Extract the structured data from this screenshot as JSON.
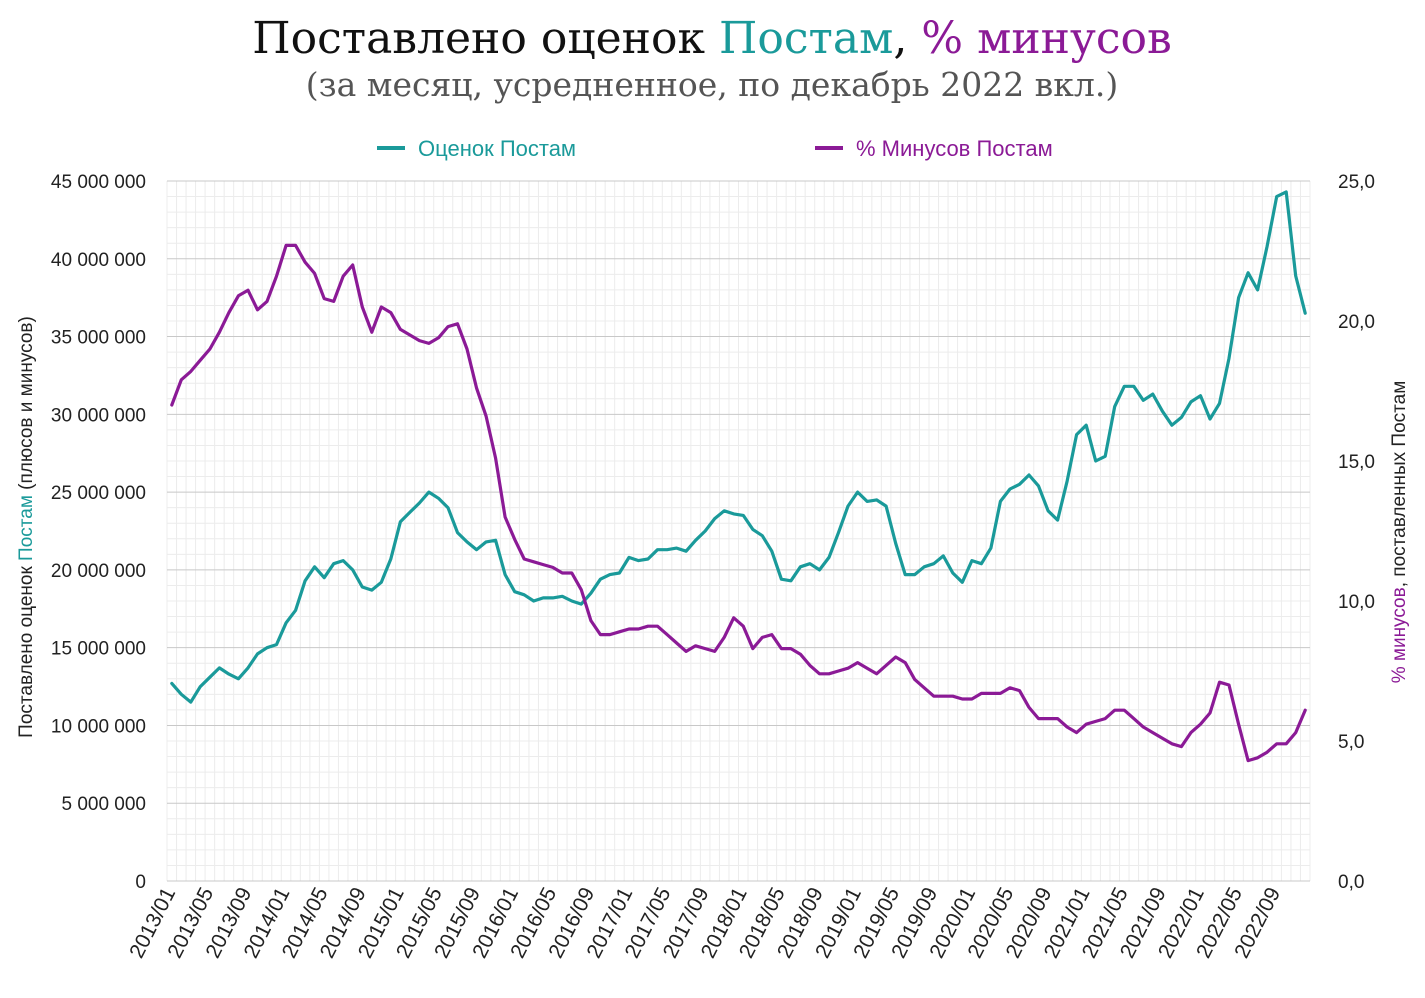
{
  "title": {
    "part1": "Поставлено оценок ",
    "part2": "Постам",
    "part3": ", ",
    "part4": "% минусов",
    "subtitle": "(за месяц, усредненное, по декабрь 2022 вкл.)"
  },
  "colors": {
    "teal": "#1a9a9a",
    "purple": "#8b1a96",
    "grid_major": "#c8c8c8",
    "grid_minor": "#ececec",
    "text": "#222222",
    "subtitle": "#555555"
  },
  "chart_data": {
    "type": "line",
    "title": "Поставлено оценок Постам, % минусов",
    "subtitle": "(за месяц, усредненное, по декабрь 2022 вкл.)",
    "ylabel_left": {
      "part1": "Поставлено оценок ",
      "part2": "Постам",
      "part3": " (плюсов и минусов)"
    },
    "ylabel_right": {
      "part1": "% минусов",
      "part2": ", поставленных Постам"
    },
    "y_left_ticks": [
      "0",
      "5 000 000",
      "10 000 000",
      "15 000 000",
      "20 000 000",
      "25 000 000",
      "30 000 000",
      "35 000 000",
      "40 000 000",
      "45 000 000"
    ],
    "y_right_ticks": [
      "0,0",
      "5,0",
      "10,0",
      "15,0",
      "20,0",
      "25,0"
    ],
    "ylim_left": [
      0,
      45000000
    ],
    "ylim_right": [
      0,
      25
    ],
    "grid": true,
    "legend_position": "top",
    "x_tick_labels": [
      "2013/01",
      "2013/05",
      "2013/09",
      "2014/01",
      "2014/05",
      "2014/09",
      "2015/01",
      "2015/05",
      "2015/09",
      "2016/01",
      "2016/05",
      "2016/09",
      "2017/01",
      "2017/05",
      "2017/09",
      "2018/01",
      "2018/05",
      "2018/09",
      "2019/01",
      "2019/05",
      "2019/09",
      "2020/01",
      "2020/05",
      "2020/09",
      "2021/01",
      "2021/05",
      "2021/09",
      "2022/01",
      "2022/05",
      "2022/09"
    ],
    "x": [
      "2013/01",
      "2013/02",
      "2013/03",
      "2013/04",
      "2013/05",
      "2013/06",
      "2013/07",
      "2013/08",
      "2013/09",
      "2013/10",
      "2013/11",
      "2013/12",
      "2014/01",
      "2014/02",
      "2014/03",
      "2014/04",
      "2014/05",
      "2014/06",
      "2014/07",
      "2014/08",
      "2014/09",
      "2014/10",
      "2014/11",
      "2014/12",
      "2015/01",
      "2015/02",
      "2015/03",
      "2015/04",
      "2015/05",
      "2015/06",
      "2015/07",
      "2015/08",
      "2015/09",
      "2015/10",
      "2015/11",
      "2015/12",
      "2016/01",
      "2016/02",
      "2016/03",
      "2016/04",
      "2016/05",
      "2016/06",
      "2016/07",
      "2016/08",
      "2016/09",
      "2016/10",
      "2016/11",
      "2016/12",
      "2017/01",
      "2017/02",
      "2017/03",
      "2017/04",
      "2017/05",
      "2017/06",
      "2017/07",
      "2017/08",
      "2017/09",
      "2017/10",
      "2017/11",
      "2017/12",
      "2018/01",
      "2018/02",
      "2018/03",
      "2018/04",
      "2018/05",
      "2018/06",
      "2018/07",
      "2018/08",
      "2018/09",
      "2018/10",
      "2018/11",
      "2018/12",
      "2019/01",
      "2019/02",
      "2019/03",
      "2019/04",
      "2019/05",
      "2019/06",
      "2019/07",
      "2019/08",
      "2019/09",
      "2019/10",
      "2019/11",
      "2019/12",
      "2020/01",
      "2020/02",
      "2020/03",
      "2020/04",
      "2020/05",
      "2020/06",
      "2020/07",
      "2020/08",
      "2020/09",
      "2020/10",
      "2020/11",
      "2020/12",
      "2021/01",
      "2021/02",
      "2021/03",
      "2021/04",
      "2021/05",
      "2021/06",
      "2021/07",
      "2021/08",
      "2021/09",
      "2021/10",
      "2021/11",
      "2021/12",
      "2022/01",
      "2022/02",
      "2022/03",
      "2022/04",
      "2022/05",
      "2022/06",
      "2022/07",
      "2022/08",
      "2022/09",
      "2022/10",
      "2022/11",
      "2022/12"
    ],
    "series": [
      {
        "name": "Оценок Постам",
        "axis": "left",
        "color": "#1a9a9a",
        "values": [
          12700000,
          12000000,
          11500000,
          12500000,
          13100000,
          13700000,
          13300000,
          13000000,
          13700000,
          14600000,
          15000000,
          15200000,
          16600000,
          17400000,
          19300000,
          20200000,
          19500000,
          20400000,
          20600000,
          20000000,
          18900000,
          18700000,
          19200000,
          20700000,
          23100000,
          23700000,
          24300000,
          25000000,
          24600000,
          24000000,
          22400000,
          21800000,
          21300000,
          21800000,
          21900000,
          19700000,
          18600000,
          18400000,
          18000000,
          18200000,
          18200000,
          18300000,
          18000000,
          17800000,
          18500000,
          19400000,
          19700000,
          19800000,
          20800000,
          20600000,
          20700000,
          21300000,
          21300000,
          21400000,
          21200000,
          21900000,
          22500000,
          23300000,
          23800000,
          23600000,
          23500000,
          22600000,
          22200000,
          21200000,
          19400000,
          19300000,
          20200000,
          20400000,
          20000000,
          20800000,
          22400000,
          24100000,
          25000000,
          24400000,
          24500000,
          24100000,
          21700000,
          19700000,
          19700000,
          20200000,
          20400000,
          20900000,
          19800000,
          19200000,
          20600000,
          20400000,
          21400000,
          24400000,
          25200000,
          25500000,
          26100000,
          25400000,
          23800000,
          23200000,
          25700000,
          28700000,
          29300000,
          27000000,
          27300000,
          30500000,
          31800000,
          31800000,
          30900000,
          31300000,
          30200000,
          29300000,
          29800000,
          30800000,
          31200000,
          29700000,
          30700000,
          33600000,
          37500000,
          39100000,
          38000000,
          40800000,
          44000000,
          44300000,
          38900000,
          36500000
        ]
      },
      {
        "name": "% Минусов Постам",
        "axis": "right",
        "color": "#8b1a96",
        "values": [
          17.0,
          17.9,
          18.2,
          18.6,
          19.0,
          19.6,
          20.3,
          20.9,
          21.1,
          20.4,
          20.7,
          21.6,
          22.7,
          22.7,
          22.1,
          21.7,
          20.8,
          20.7,
          21.6,
          22.0,
          20.5,
          19.6,
          20.5,
          20.3,
          19.7,
          19.5,
          19.3,
          19.2,
          19.4,
          19.8,
          19.9,
          19.0,
          17.6,
          16.6,
          15.1,
          13.0,
          12.2,
          11.5,
          11.4,
          11.3,
          11.2,
          11.0,
          11.0,
          10.4,
          9.3,
          8.8,
          8.8,
          8.9,
          9.0,
          9.0,
          9.1,
          9.1,
          8.8,
          8.5,
          8.2,
          8.4,
          8.3,
          8.2,
          8.7,
          9.4,
          9.1,
          8.3,
          8.7,
          8.8,
          8.3,
          8.3,
          8.1,
          7.7,
          7.4,
          7.4,
          7.5,
          7.6,
          7.8,
          7.6,
          7.4,
          7.7,
          8.0,
          7.8,
          7.2,
          6.9,
          6.6,
          6.6,
          6.6,
          6.5,
          6.5,
          6.7,
          6.7,
          6.7,
          6.9,
          6.8,
          6.2,
          5.8,
          5.8,
          5.8,
          5.5,
          5.3,
          5.6,
          5.7,
          5.8,
          6.1,
          6.1,
          5.8,
          5.5,
          5.3,
          5.1,
          4.9,
          4.8,
          5.3,
          5.6,
          6.0,
          7.1,
          7.0,
          5.6,
          4.3,
          4.4,
          4.6,
          4.9,
          4.9,
          5.3,
          6.1
        ]
      }
    ]
  }
}
